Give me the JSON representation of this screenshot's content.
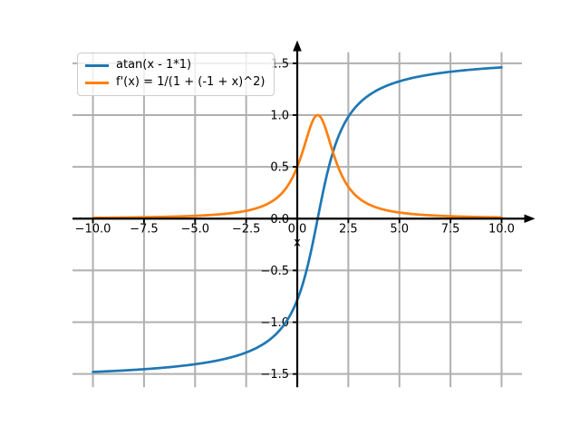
{
  "figure": {
    "background": "#ffffff"
  },
  "chart_data": {
    "type": "line",
    "title": "",
    "xlabel": "x",
    "ylabel": "",
    "xlim": [
      -11,
      11
    ],
    "ylim": [
      -1.627,
      1.607
    ],
    "x_range": [
      -10,
      10
    ],
    "samples": 401,
    "x_ticks": [
      -10,
      -7.5,
      -5,
      -2.5,
      0,
      2.5,
      5,
      7.5,
      10
    ],
    "x_tick_labels": [
      "−10.0",
      "−7.5",
      "−5.0",
      "−2.5",
      "0.0",
      "2.5",
      "5.0",
      "7.5",
      "10.0"
    ],
    "y_ticks": [
      -1.5,
      -1,
      -0.5,
      0,
      0.5,
      1,
      1.5
    ],
    "y_tick_labels": [
      "−1.5",
      "−1.0",
      "−0.5",
      "0.0",
      "0.5",
      "1.0",
      "1.5"
    ],
    "grid": true,
    "grid_color": "#b0b0b0",
    "axis_color": "#000000",
    "legend_position": "upper-left",
    "series": [
      {
        "name": "atan-curve",
        "label": "atan(x - 1*1)",
        "color": "#1f77b4",
        "expr": "Math.atan(x - 1)",
        "key_points": [
          {
            "x": -10,
            "y": -1.4801
          },
          {
            "x": 0,
            "y": -0.7854
          },
          {
            "x": 1,
            "y": 0
          },
          {
            "x": 10,
            "y": 1.4601
          }
        ]
      },
      {
        "name": "derivative-curve",
        "label": "f'(x) = 1/(1 + (-1 + x)^2)",
        "color": "#ff7f0e",
        "expr": "1/(1 + Math.pow(-1 + x, 2))",
        "key_points": [
          {
            "x": -10,
            "y": 0.0082
          },
          {
            "x": 0,
            "y": 0.5
          },
          {
            "x": 1,
            "y": 1
          },
          {
            "x": 10,
            "y": 0.0122
          }
        ]
      }
    ]
  }
}
